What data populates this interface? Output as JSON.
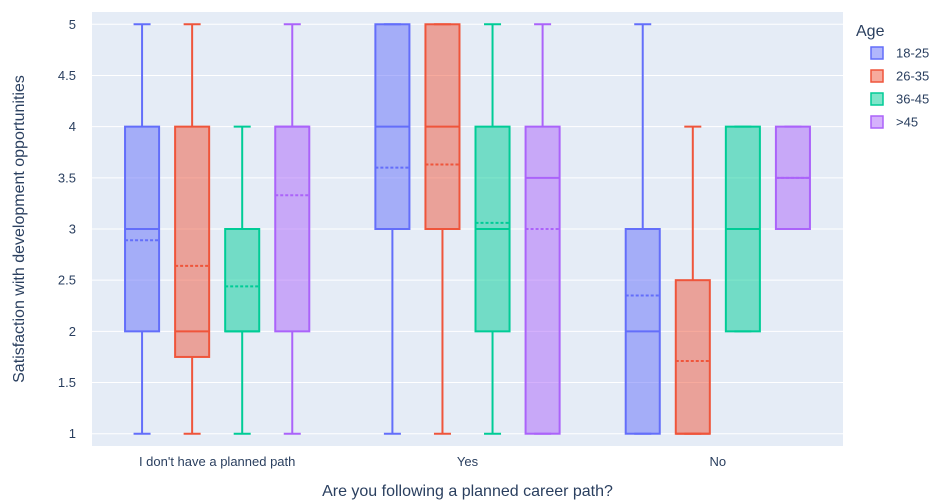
{
  "chart_data": {
    "type": "box",
    "xlabel": "Are you following a planned career path?",
    "ylabel": "Satisfaction with development opportunities",
    "categories": [
      "I don't have a planned path",
      "Yes",
      "No"
    ],
    "ylim": [
      0.88,
      5.12
    ],
    "yticks": [
      1,
      1.5,
      2,
      2.5,
      3,
      3.5,
      4,
      4.5,
      5
    ],
    "ytick_labels": [
      "1",
      "1.5",
      "2",
      "2.5",
      "3",
      "3.5",
      "4",
      "4.5",
      "5"
    ],
    "grid": true,
    "legend_title": "Age",
    "legend_position": "right",
    "series": [
      {
        "name": "18-25",
        "color": "#636efa",
        "boxes": [
          {
            "category": "I don't have a planned path",
            "min": 1,
            "q1": 2,
            "median": 3,
            "q3": 4,
            "max": 5,
            "mean": 2.89
          },
          {
            "category": "Yes",
            "min": 1,
            "q1": 3,
            "median": 4,
            "q3": 5,
            "max": 5,
            "mean": 3.6
          },
          {
            "category": "No",
            "min": 1,
            "q1": 1,
            "median": 2,
            "q3": 3,
            "max": 5,
            "mean": 2.35
          }
        ]
      },
      {
        "name": "26-35",
        "color": "#ef553b",
        "boxes": [
          {
            "category": "I don't have a planned path",
            "min": 1,
            "q1": 1.75,
            "median": 2,
            "q3": 4,
            "max": 5,
            "mean": 2.64
          },
          {
            "category": "Yes",
            "min": 1,
            "q1": 3,
            "median": 4,
            "q3": 5,
            "max": 5,
            "mean": 3.63
          },
          {
            "category": "No",
            "min": 1,
            "q1": 1,
            "median": 1,
            "q3": 2.5,
            "max": 4,
            "mean": 1.71
          }
        ]
      },
      {
        "name": "36-45",
        "color": "#00cc96",
        "boxes": [
          {
            "category": "I don't have a planned path",
            "min": 1,
            "q1": 2,
            "median": 2,
            "q3": 3,
            "max": 4,
            "mean": 2.44
          },
          {
            "category": "Yes",
            "min": 1,
            "q1": 2,
            "median": 3,
            "q3": 4,
            "max": 5,
            "mean": 3.06
          },
          {
            "category": "No",
            "min": 2,
            "q1": 2,
            "median": 3,
            "q3": 4,
            "max": 4,
            "mean": 3
          }
        ]
      },
      {
        "name": ">45",
        "color": "#ab63fa",
        "boxes": [
          {
            "category": "I don't have a planned path",
            "min": 1,
            "q1": 2,
            "median": 4,
            "q3": 4,
            "max": 5,
            "mean": 3.33
          },
          {
            "category": "Yes",
            "min": 1,
            "q1": 1,
            "median": 3.5,
            "q3": 4,
            "max": 5,
            "mean": 3
          },
          {
            "category": "No",
            "min": 3,
            "q1": 3,
            "median": 3.5,
            "q3": 4,
            "max": 4,
            "mean": 3.5
          }
        ]
      }
    ]
  }
}
